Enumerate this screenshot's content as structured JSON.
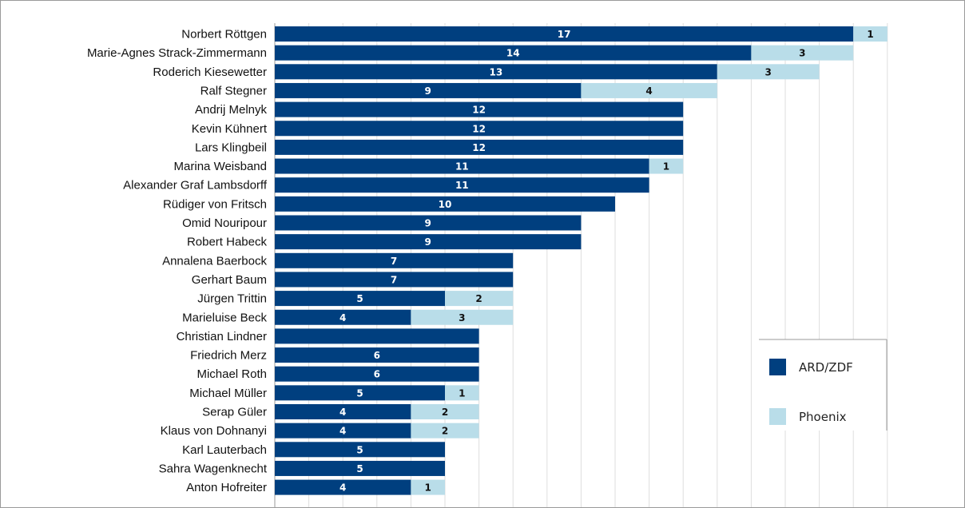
{
  "chart_data": {
    "type": "bar",
    "orientation": "horizontal",
    "stacked": true,
    "categories": [
      "Norbert Röttgen",
      "Marie-Agnes Strack-Zimmermann",
      "Roderich Kiesewetter",
      "Ralf Stegner",
      "Andrij Melnyk",
      "Kevin Kühnert",
      "Lars Klingbeil",
      "Marina Weisband",
      "Alexander Graf Lambsdorff",
      "Rüdiger von Fritsch",
      "Omid Nouripour",
      "Robert Habeck",
      "Annalena Baerbock",
      "Gerhart Baum",
      "Jürgen Trittin",
      "Marieluise Beck",
      "Christian Lindner",
      "Friedrich Merz",
      "Michael Roth",
      "Michael Müller",
      "Serap Güler",
      "Klaus von Dohnanyi",
      "Karl Lauterbach",
      "Sahra Wagenknecht",
      "Anton Hofreiter"
    ],
    "series": [
      {
        "name": "ARD/ZDF",
        "color": "#003f7f",
        "label_color": "#ffffff",
        "values": [
          17,
          14,
          13,
          9,
          12,
          12,
          12,
          11,
          11,
          10,
          9,
          9,
          7,
          7,
          5,
          4,
          6,
          6,
          6,
          5,
          4,
          4,
          5,
          5,
          4
        ],
        "labels": [
          "17",
          "14",
          "13",
          "9",
          "12",
          "12",
          "12",
          "11",
          "11",
          "10",
          "9",
          "9",
          "7",
          "7",
          "5",
          "4",
          "",
          "6",
          "6",
          "5",
          "4",
          "4",
          "5",
          "5",
          "4"
        ]
      },
      {
        "name": "Phoenix",
        "color": "#b9dde9",
        "label_color": "#111111",
        "values": [
          1,
          3,
          3,
          4,
          0,
          0,
          0,
          1,
          0,
          0,
          0,
          0,
          0,
          0,
          2,
          3,
          0,
          0,
          0,
          1,
          2,
          2,
          0,
          0,
          1
        ],
        "labels": [
          "1",
          "3",
          "3",
          "4",
          "",
          "",
          "",
          "1",
          "",
          "",
          "",
          "",
          "",
          "",
          "2",
          "3",
          "",
          "",
          "",
          "1",
          "2",
          "2",
          "",
          "",
          "1"
        ]
      }
    ],
    "xlim": [
      0,
      18
    ],
    "grid": true,
    "legend": "bottom-right"
  }
}
